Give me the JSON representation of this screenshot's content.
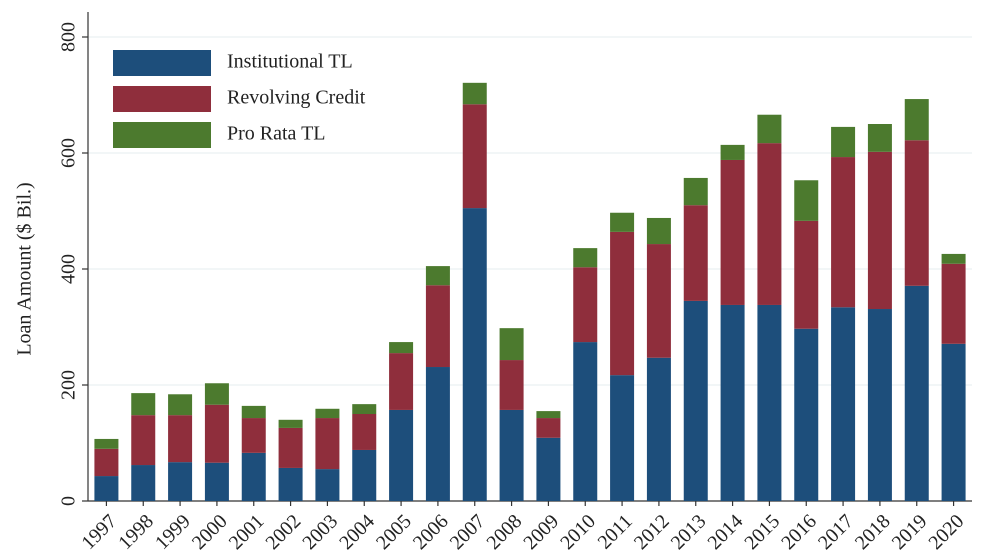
{
  "chart_data": {
    "type": "stacked_bar",
    "y_label": "Loan Amount ($ Bil.)",
    "categories": [
      "1997",
      "1998",
      "1999",
      "2000",
      "2001",
      "2002",
      "2003",
      "2004",
      "2005",
      "2006",
      "2007",
      "2008",
      "2009",
      "2010",
      "2011",
      "2012",
      "2013",
      "2014",
      "2015",
      "2016",
      "2017",
      "2018",
      "2019",
      "2020"
    ],
    "series": [
      {
        "name": "Institutional TL",
        "color": "#1d4e7b",
        "values": [
          43,
          62,
          67,
          66,
          83,
          57,
          55,
          88,
          157,
          231,
          505,
          157,
          109,
          274,
          217,
          247,
          345,
          338,
          338,
          297,
          334,
          331,
          371,
          271
        ]
      },
      {
        "name": "Revolving Credit",
        "color": "#8f2e3c",
        "values": [
          47,
          86,
          81,
          100,
          60,
          69,
          88,
          62,
          98,
          141,
          179,
          86,
          34,
          129,
          247,
          196,
          165,
          250,
          279,
          186,
          259,
          271,
          251,
          138
        ]
      },
      {
        "name": "Pro Rata TL",
        "color": "#4c7a2e",
        "values": [
          17,
          38,
          36,
          37,
          21,
          14,
          16,
          17,
          19,
          33,
          37,
          55,
          12,
          33,
          33,
          45,
          47,
          26,
          49,
          70,
          52,
          48,
          71,
          17
        ]
      }
    ],
    "ylim": [
      0,
      800
    ],
    "yticks": [
      0,
      200,
      400,
      600,
      800
    ],
    "grid": true,
    "legend": "top-left"
  }
}
